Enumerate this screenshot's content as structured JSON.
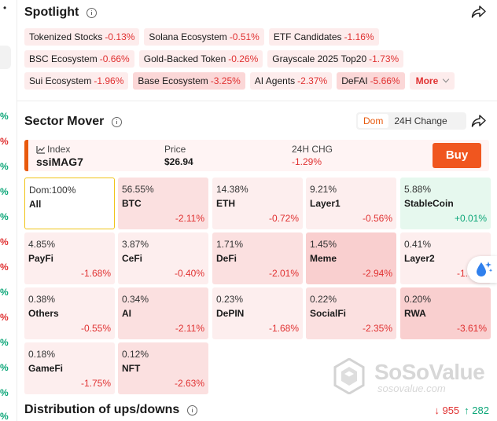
{
  "left_strip": {
    "top_mark": "•",
    "values": [
      "%",
      "%",
      "%",
      "%",
      "%",
      "%",
      "%",
      "%",
      "%",
      "%",
      "%",
      "%",
      "%",
      "%",
      "%",
      "%"
    ]
  },
  "spotlight": {
    "title": "Spotlight",
    "chips_row1": [
      {
        "label": "Tokenized Stocks",
        "change": "-0.13%"
      },
      {
        "label": "Solana Ecosystem",
        "change": "-0.51%"
      },
      {
        "label": "ETF Candidates",
        "change": "-1.16%"
      }
    ],
    "chips_row2": [
      {
        "label": "BSC Ecosystem",
        "change": "-0.66%"
      },
      {
        "label": "Gold-Backed Token",
        "change": "-0.26%"
      },
      {
        "label": "Grayscale 2025 Top20",
        "change": "-1.73%"
      }
    ],
    "chips_row3": [
      {
        "label": "Sui Ecosystem",
        "change": "-1.96%"
      },
      {
        "label": "Base Ecosystem",
        "change": "-3.25%"
      },
      {
        "label": "AI Agents",
        "change": "-2.37%"
      },
      {
        "label": "DeFAI",
        "change": "-5.66%"
      }
    ],
    "more_label": "More"
  },
  "sector_mover": {
    "title": "Sector Mover",
    "toggle": [
      "Dom",
      "24H Change"
    ],
    "index": {
      "label": "Index",
      "name": "ssiMAG7",
      "price_label": "Price",
      "price": "$26.94",
      "chg_label": "24H CHG",
      "chg": "-1.29%",
      "buy_label": "Buy"
    },
    "tiles": [
      {
        "pct": "Dom:100%",
        "name": "All",
        "chg": ""
      },
      {
        "pct": "56.55%",
        "name": "BTC",
        "chg": "-2.11%"
      },
      {
        "pct": "14.38%",
        "name": "ETH",
        "chg": "-0.72%"
      },
      {
        "pct": "9.21%",
        "name": "Layer1",
        "chg": "-0.56%"
      },
      {
        "pct": "5.88%",
        "name": "StableCoin",
        "chg": "+0.01%"
      },
      {
        "pct": "4.85%",
        "name": "PayFi",
        "chg": "-1.68%"
      },
      {
        "pct": "3.87%",
        "name": "CeFi",
        "chg": "-0.40%"
      },
      {
        "pct": "1.71%",
        "name": "DeFi",
        "chg": "-2.01%"
      },
      {
        "pct": "1.45%",
        "name": "Meme",
        "chg": "-2.94%"
      },
      {
        "pct": "0.41%",
        "name": "Layer2",
        "chg": "-1.17%"
      },
      {
        "pct": "0.38%",
        "name": "Others",
        "chg": "-0.55%"
      },
      {
        "pct": "0.34%",
        "name": "AI",
        "chg": "-2.11%"
      },
      {
        "pct": "0.23%",
        "name": "DePIN",
        "chg": "-1.68%"
      },
      {
        "pct": "0.22%",
        "name": "SocialFi",
        "chg": "-2.35%"
      },
      {
        "pct": "0.20%",
        "name": "RWA",
        "chg": "-3.61%"
      },
      {
        "pct": "0.18%",
        "name": "GameFi",
        "chg": "-1.75%"
      },
      {
        "pct": "0.12%",
        "name": "NFT",
        "chg": "-2.63%"
      }
    ]
  },
  "watermark": {
    "title": "SoSoValue",
    "sub": "sosovalue.com"
  },
  "distribution": {
    "title": "Distribution of ups/downs",
    "down": "955",
    "up": "282"
  },
  "colors": {
    "accent": "#f0561f",
    "down": "#e03131",
    "up": "#0ca678",
    "highlight_border": "#f0c419"
  }
}
